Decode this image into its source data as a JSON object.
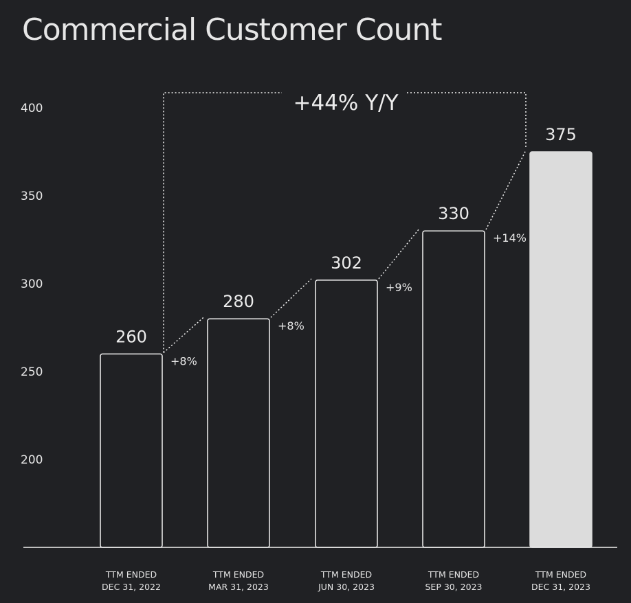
{
  "chart_data": {
    "type": "bar",
    "title": "Commercial Customer Count",
    "categories": [
      [
        "TTM ENDED",
        "DEC 31, 2022"
      ],
      [
        "TTM ENDED",
        "MAR 31, 2023"
      ],
      [
        "TTM ENDED",
        "JUN 30, 2023"
      ],
      [
        "TTM ENDED",
        "SEP 30, 2023"
      ],
      [
        "TTM ENDED",
        "DEC 31, 2023"
      ]
    ],
    "values": [
      260,
      280,
      302,
      330,
      375
    ],
    "value_labels": [
      "260",
      "280",
      "302",
      "330",
      "375"
    ],
    "growth_labels": [
      "+8%",
      "+8%",
      "+9%",
      "+14%"
    ],
    "yoy_label": "+44% Y/Y",
    "yticks": [
      200,
      250,
      300,
      350,
      400
    ],
    "ylim": [
      150,
      400
    ],
    "grid": false,
    "legend": "none",
    "colors": {
      "background": "#202124",
      "outline": "#f2f2f2",
      "highlight_fill": "#dcdcdc",
      "text": "#e8e8e8"
    }
  }
}
